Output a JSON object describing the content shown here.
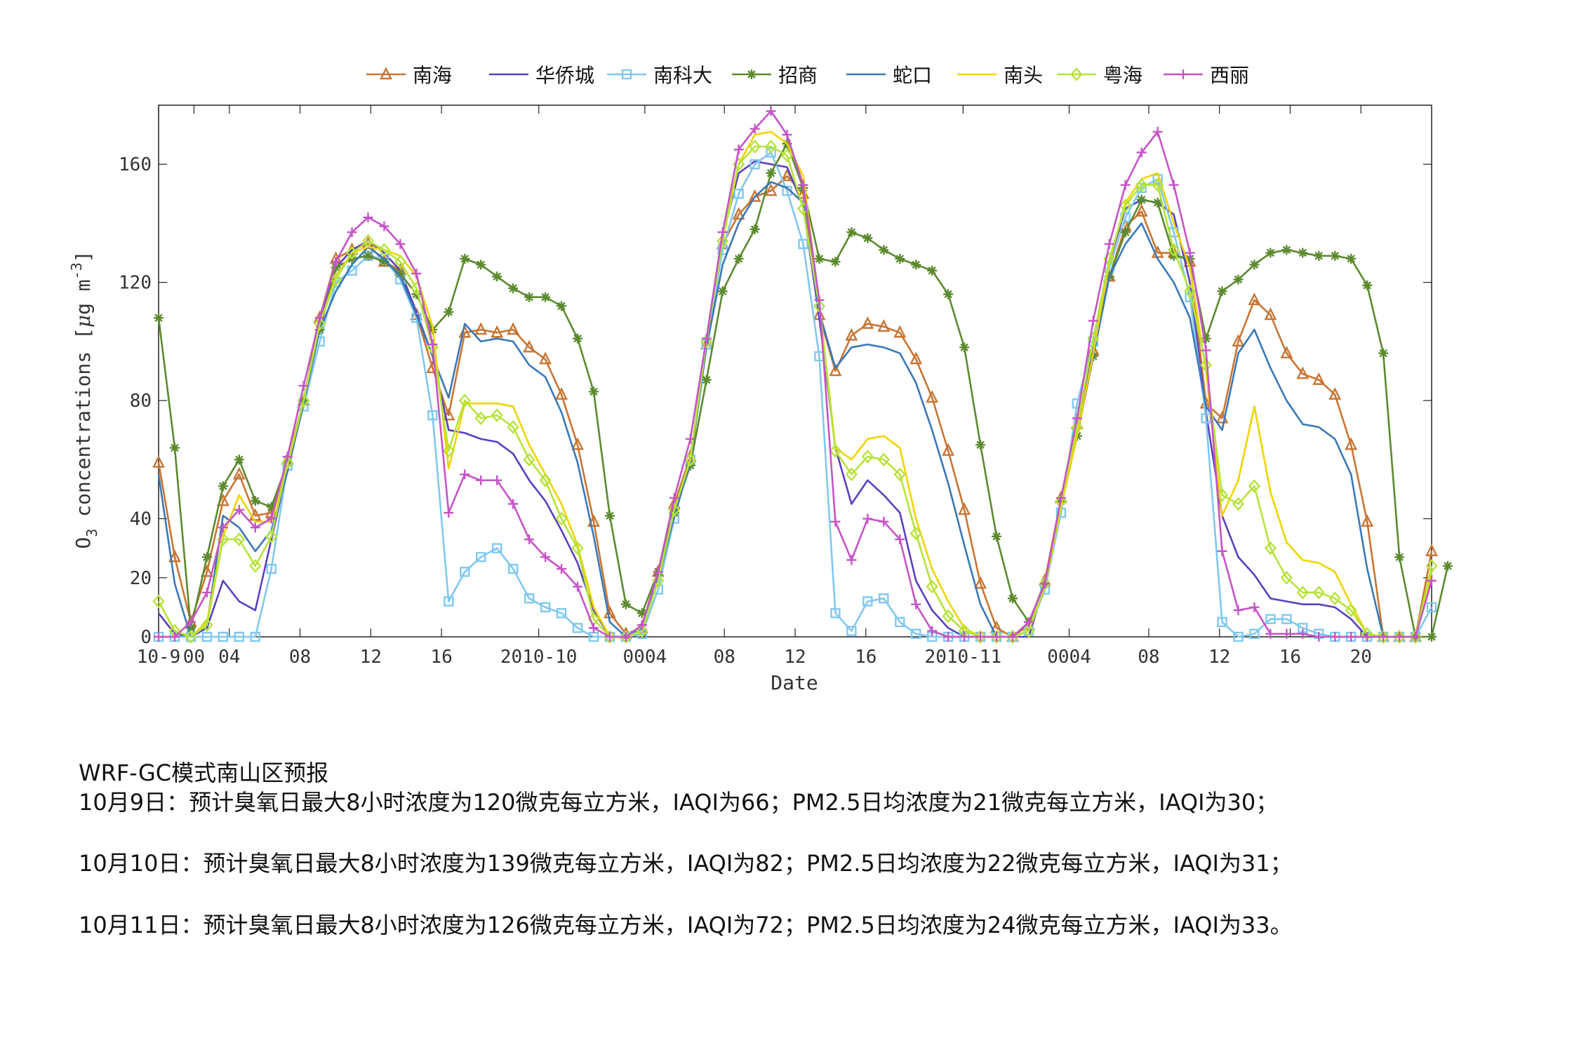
{
  "chart_data": {
    "type": "line",
    "xlabel": "Date",
    "ylabel": "O3 concentrations [μg m-3]",
    "ylim": [
      0,
      180
    ],
    "yticks": [
      0,
      20,
      40,
      80,
      120,
      160
    ],
    "x_range": [
      0,
      72
    ],
    "xticks": [
      {
        "x": 0,
        "label": "10-9"
      },
      {
        "x": 2,
        "label": "00"
      },
      {
        "x": 4,
        "label": "04"
      },
      {
        "x": 8,
        "label": "08"
      },
      {
        "x": 12,
        "label": "12"
      },
      {
        "x": 16,
        "label": "16"
      },
      {
        "x": 21.5,
        "label": "2010-10"
      },
      {
        "x": 27.5,
        "label": "0004"
      },
      {
        "x": 32,
        "label": "08"
      },
      {
        "x": 36,
        "label": "12"
      },
      {
        "x": 40,
        "label": "16"
      },
      {
        "x": 45.5,
        "label": "2010-11"
      },
      {
        "x": 51.5,
        "label": "0004"
      },
      {
        "x": 56,
        "label": "08"
      },
      {
        "x": 60,
        "label": "12"
      },
      {
        "x": 64,
        "label": "16"
      },
      {
        "x": 68,
        "label": "20"
      }
    ],
    "legend": "top, horizontal",
    "series": [
      {
        "name": "南海",
        "color": "#C87533",
        "marker": "triangle",
        "values": [
          59,
          27,
          5,
          22,
          46,
          55,
          41,
          42,
          60,
          80,
          108,
          128,
          131,
          133,
          127,
          124,
          109,
          91,
          75,
          103,
          104,
          103,
          104,
          98,
          94,
          82,
          65,
          39,
          8,
          1,
          3,
          22,
          45,
          61,
          99,
          133,
          143,
          149,
          151,
          156,
          150,
          109,
          90,
          102,
          106,
          105,
          103,
          94,
          81,
          63,
          43,
          18,
          3,
          0,
          4,
          19,
          47,
          72,
          97,
          122,
          139,
          144,
          130,
          130,
          127,
          79,
          74,
          100,
          114,
          109,
          96,
          89,
          87,
          82,
          65,
          39,
          0,
          0,
          0,
          29
        ]
      },
      {
        "name": "华侨城",
        "color": "#5A3FC0",
        "marker": "none",
        "values": [
          8,
          1,
          0,
          3,
          19,
          12,
          9,
          33,
          57,
          79,
          106,
          125,
          131,
          134,
          130,
          124,
          110,
          95,
          70,
          69,
          67,
          66,
          62,
          53,
          46,
          36,
          25,
          9,
          0,
          0,
          2,
          20,
          43,
          60,
          100,
          136,
          157,
          161,
          160,
          159,
          146,
          108,
          64,
          45,
          53,
          48,
          42,
          19,
          9,
          3,
          0,
          0,
          0,
          0,
          0,
          18,
          46,
          71,
          97,
          127,
          145,
          148,
          147,
          143,
          120,
          76,
          41,
          27,
          21,
          13,
          12,
          11,
          11,
          10,
          6,
          0,
          0,
          0,
          0,
          22
        ]
      },
      {
        "name": "南科大",
        "color": "#80C8F0",
        "marker": "square",
        "values": [
          0,
          0,
          0,
          0,
          0,
          0,
          0,
          23,
          58,
          78,
          100,
          120,
          124,
          129,
          128,
          121,
          108,
          75,
          12,
          22,
          27,
          30,
          23,
          13,
          10,
          8,
          3,
          0,
          0,
          0,
          1,
          16,
          40,
          60,
          99,
          131,
          150,
          160,
          164,
          151,
          133,
          95,
          8,
          2,
          12,
          13,
          5,
          1,
          0,
          0,
          0,
          0,
          0,
          0,
          2,
          16,
          42,
          79,
          100,
          125,
          142,
          152,
          155,
          137,
          115,
          74,
          5,
          0,
          1,
          6,
          6,
          3,
          1,
          0,
          0,
          0,
          0,
          0,
          0,
          10
        ]
      },
      {
        "name": "招商",
        "color": "#5C8A2E",
        "marker": "star",
        "values": [
          108,
          64,
          3,
          27,
          51,
          60,
          46,
          44,
          59,
          80,
          104,
          125,
          128,
          129,
          127,
          123,
          116,
          104,
          110,
          128,
          126,
          122,
          118,
          115,
          115,
          112,
          101,
          83,
          41,
          11,
          8,
          22,
          42,
          58,
          87,
          117,
          128,
          138,
          157,
          167,
          152,
          128,
          127,
          137,
          135,
          131,
          128,
          126,
          124,
          116,
          98,
          65,
          34,
          13,
          5,
          18,
          46,
          68,
          95,
          122,
          137,
          148,
          147,
          129,
          128,
          101,
          117,
          121,
          126,
          130,
          131,
          130,
          129,
          129,
          128,
          119,
          96,
          27,
          0,
          0,
          24
        ]
      },
      {
        "name": "蛇口",
        "color": "#3A78B8",
        "marker": "none",
        "values": [
          55,
          18,
          0,
          4,
          41,
          37,
          29,
          36,
          56,
          79,
          104,
          117,
          126,
          132,
          128,
          122,
          109,
          95,
          81,
          106,
          100,
          101,
          100,
          92,
          88,
          76,
          59,
          34,
          5,
          0,
          3,
          19,
          41,
          59,
          98,
          126,
          140,
          149,
          154,
          152,
          147,
          110,
          91,
          98,
          99,
          98,
          96,
          86,
          70,
          52,
          31,
          11,
          0,
          0,
          2,
          17,
          44,
          68,
          95,
          122,
          133,
          140,
          128,
          120,
          108,
          78,
          70,
          96,
          104,
          91,
          80,
          72,
          71,
          67,
          55,
          23,
          0,
          0,
          0,
          22
        ]
      },
      {
        "name": "南头",
        "color": "#F0D400",
        "marker": "none",
        "values": [
          12,
          2,
          0,
          5,
          34,
          48,
          39,
          39,
          58,
          80,
          106,
          122,
          130,
          132,
          131,
          129,
          122,
          105,
          57,
          79,
          79,
          79,
          78,
          65,
          55,
          45,
          31,
          10,
          0,
          0,
          2,
          19,
          43,
          60,
          101,
          137,
          160,
          170,
          171,
          167,
          156,
          113,
          64,
          60,
          67,
          68,
          64,
          40,
          23,
          12,
          3,
          0,
          0,
          0,
          2,
          17,
          44,
          68,
          96,
          127,
          147,
          155,
          157,
          140,
          125,
          90,
          41,
          53,
          78,
          49,
          32,
          26,
          25,
          22,
          11,
          1,
          0,
          0,
          0,
          22
        ]
      },
      {
        "name": "粤海",
        "color": "#B6E33A",
        "marker": "diamond",
        "values": [
          12,
          2,
          0,
          4,
          33,
          33,
          24,
          34,
          59,
          80,
          106,
          121,
          130,
          134,
          131,
          127,
          118,
          98,
          63,
          80,
          74,
          75,
          71,
          60,
          53,
          40,
          30,
          6,
          0,
          0,
          2,
          19,
          43,
          60,
          100,
          134,
          160,
          166,
          166,
          163,
          145,
          112,
          63,
          55,
          61,
          60,
          55,
          35,
          17,
          7,
          2,
          0,
          0,
          0,
          2,
          18,
          46,
          71,
          101,
          128,
          146,
          153,
          153,
          131,
          117,
          92,
          48,
          45,
          51,
          30,
          20,
          15,
          15,
          13,
          9,
          1,
          0,
          0,
          0,
          24
        ]
      },
      {
        "name": "西丽",
        "color": "#C654C8",
        "marker": "plus",
        "values": [
          0,
          0,
          5,
          15,
          37,
          43,
          37,
          40,
          61,
          85,
          108,
          127,
          137,
          142,
          139,
          133,
          123,
          99,
          42,
          55,
          53,
          53,
          45,
          33,
          27,
          23,
          17,
          3,
          0,
          0,
          4,
          22,
          47,
          67,
          101,
          137,
          165,
          172,
          178,
          170,
          153,
          114,
          39,
          26,
          40,
          39,
          33,
          11,
          2,
          0,
          0,
          0,
          0,
          0,
          5,
          18,
          47,
          74,
          107,
          133,
          153,
          164,
          171,
          153,
          130,
          97,
          29,
          9,
          10,
          1,
          1,
          1,
          0,
          0,
          0,
          0,
          0,
          0,
          0,
          19
        ]
      }
    ]
  },
  "report": {
    "title": "WRF-GC模式南山区预报",
    "day1": "10月9日：预计臭氧日最大8小时浓度为120微克每立方米，IAQI为66；PM2.5日均浓度为21微克每立方米，IAQI为30；",
    "day2": "10月10日：预计臭氧日最大8小时浓度为139微克每立方米，IAQI为82；PM2.5日均浓度为22微克每立方米，IAQI为31；",
    "day3": "10月11日：预计臭氧日最大8小时浓度为126微克每立方米，IAQI为72；PM2.5日均浓度为24微克每立方米，IAQI为33。"
  }
}
